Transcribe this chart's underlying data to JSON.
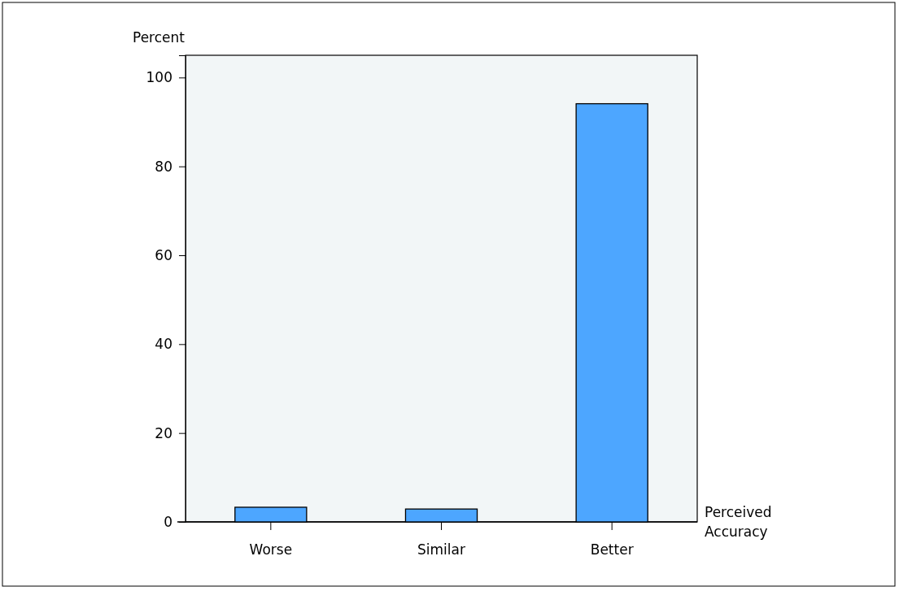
{
  "chart_data": {
    "type": "bar",
    "ylabel": "Percent",
    "xlabel": "Perceived Accuracy",
    "categories": [
      "Worse",
      "Similar",
      "Better"
    ],
    "values": [
      3.3,
      2.9,
      94.1
    ],
    "color": "#4da6ff",
    "ylim": [
      0,
      105
    ],
    "yticks": [
      0,
      20,
      40,
      60,
      80,
      100
    ],
    "grid": false
  }
}
